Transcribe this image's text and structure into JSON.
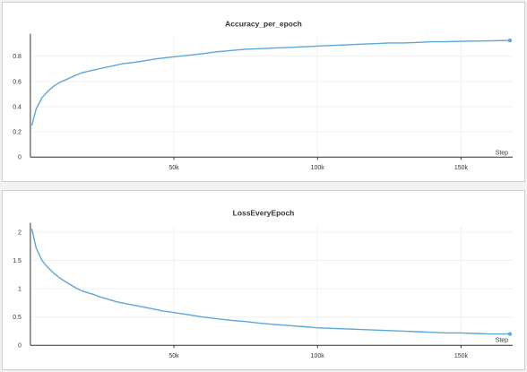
{
  "colors": {
    "series": "#5ea6d8",
    "axis": "#333333",
    "grid": "#efefef"
  },
  "chart_data": [
    {
      "type": "line",
      "title": "Accuracy_per_epoch",
      "xlabel": "Step",
      "ylabel": "",
      "xlim": [
        0,
        168000
      ],
      "ylim": [
        0,
        0.95
      ],
      "xticks": [
        {
          "value": 50000,
          "label": "50k"
        },
        {
          "value": 100000,
          "label": "100k"
        },
        {
          "value": 150000,
          "label": "150k"
        }
      ],
      "yticks": [
        {
          "value": 0,
          "label": "0"
        },
        {
          "value": 0.2,
          "label": "0.2"
        },
        {
          "value": 0.4,
          "label": "0.4"
        },
        {
          "value": 0.6,
          "label": "0.6"
        },
        {
          "value": 0.8,
          "label": "0.8"
        }
      ],
      "grid": true,
      "series": [
        {
          "x": [
            500,
            2000,
            4000,
            6000,
            8000,
            10000,
            12000,
            14000,
            16000,
            18000,
            20000,
            22000,
            24000,
            26000,
            28000,
            30000,
            32000,
            34000,
            36000,
            40000,
            44000,
            48000,
            52000,
            56000,
            60000,
            65000,
            70000,
            75000,
            80000,
            85000,
            90000,
            95000,
            100000,
            105000,
            110000,
            115000,
            120000,
            125000,
            130000,
            135000,
            140000,
            145000,
            150000,
            155000,
            160000,
            165000,
            167000
          ],
          "y": [
            0.25,
            0.38,
            0.47,
            0.52,
            0.56,
            0.59,
            0.61,
            0.63,
            0.65,
            0.67,
            0.68,
            0.69,
            0.7,
            0.71,
            0.72,
            0.73,
            0.74,
            0.745,
            0.75,
            0.765,
            0.78,
            0.79,
            0.8,
            0.81,
            0.82,
            0.835,
            0.845,
            0.855,
            0.86,
            0.865,
            0.87,
            0.875,
            0.88,
            0.885,
            0.89,
            0.895,
            0.9,
            0.905,
            0.905,
            0.91,
            0.915,
            0.915,
            0.918,
            0.92,
            0.922,
            0.925,
            0.925
          ]
        }
      ]
    },
    {
      "type": "line",
      "title": "LossEveryEpoch",
      "xlabel": "Step",
      "ylabel": "",
      "xlim": [
        0,
        168000
      ],
      "ylim": [
        0,
        2.1
      ],
      "xticks": [
        {
          "value": 50000,
          "label": "50k"
        },
        {
          "value": 100000,
          "label": "100k"
        },
        {
          "value": 150000,
          "label": "150k"
        }
      ],
      "yticks": [
        {
          "value": 0,
          "label": "0"
        },
        {
          "value": 0.5,
          "label": "0.5"
        },
        {
          "value": 1,
          "label": "1"
        },
        {
          "value": 1.5,
          "label": "1.5"
        },
        {
          "value": 2,
          "label": "2"
        }
      ],
      "grid": true,
      "series": [
        {
          "x": [
            500,
            2000,
            4000,
            6000,
            8000,
            10000,
            12000,
            14000,
            16000,
            18000,
            20000,
            22000,
            24000,
            26000,
            28000,
            30000,
            34000,
            38000,
            42000,
            46000,
            50000,
            55000,
            60000,
            65000,
            70000,
            75000,
            80000,
            85000,
            90000,
            95000,
            100000,
            105000,
            110000,
            115000,
            120000,
            125000,
            130000,
            135000,
            140000,
            145000,
            150000,
            155000,
            160000,
            165000,
            167000
          ],
          "y": [
            2.06,
            1.72,
            1.5,
            1.38,
            1.28,
            1.2,
            1.13,
            1.07,
            1.01,
            0.96,
            0.93,
            0.9,
            0.86,
            0.83,
            0.8,
            0.77,
            0.73,
            0.69,
            0.65,
            0.61,
            0.58,
            0.54,
            0.5,
            0.47,
            0.44,
            0.42,
            0.39,
            0.37,
            0.35,
            0.33,
            0.31,
            0.3,
            0.29,
            0.28,
            0.27,
            0.26,
            0.25,
            0.24,
            0.23,
            0.22,
            0.22,
            0.21,
            0.2,
            0.2,
            0.2
          ]
        }
      ]
    }
  ]
}
